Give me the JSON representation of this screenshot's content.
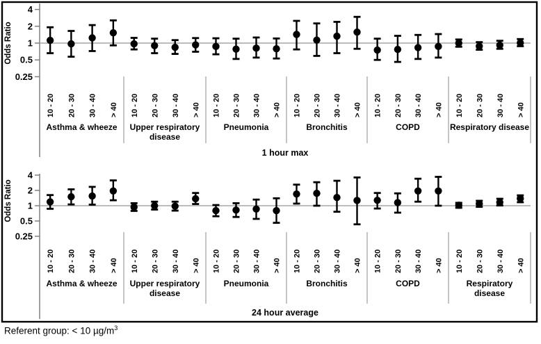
{
  "figure": {
    "referent_note": "Referent group: < 10 µg/m³",
    "referent_note_main": "Referent group: < 10 µg/m",
    "referent_note_sup": "3"
  },
  "colors": {
    "marker": "#000000",
    "axis": "#808080",
    "grid": "#a6a6a6",
    "separator": "#a6a6a6",
    "border": "#000000",
    "background": "#ffffff"
  },
  "chart_data": [
    {
      "type": "scatter",
      "subtype": "odds-ratio-forest-errorbar",
      "title": "1 hour max",
      "ylabel": "Odds Ratio",
      "yscale": "log2",
      "ylim": [
        0.25,
        4
      ],
      "yticks": [
        "4",
        "2",
        "1",
        "0.5",
        "0.25"
      ],
      "reference_line": 1,
      "x_categories": [
        "10 - 20",
        "20 - 30",
        "30 - 40",
        "> 40"
      ],
      "points_format": [
        "odds_ratio",
        "ci_low",
        "ci_high"
      ],
      "groups": [
        {
          "label": "Asthma & wheeze",
          "label_lines": [
            "Asthma & wheeze"
          ],
          "points": [
            [
              1.12,
              0.66,
              1.92
            ],
            [
              0.97,
              0.57,
              1.65
            ],
            [
              1.24,
              0.72,
              2.1
            ],
            [
              1.53,
              0.91,
              2.55
            ]
          ]
        },
        {
          "label": "Upper respiratory disease",
          "label_lines": [
            "Upper respiratory",
            "disease"
          ],
          "points": [
            [
              0.97,
              0.77,
              1.24
            ],
            [
              0.9,
              0.66,
              1.2
            ],
            [
              0.84,
              0.64,
              1.13
            ],
            [
              0.93,
              0.7,
              1.23
            ]
          ]
        },
        {
          "label": "Pneumonia",
          "label_lines": [
            "Pneumonia"
          ],
          "points": [
            [
              0.87,
              0.63,
              1.22
            ],
            [
              0.78,
              0.52,
              1.2
            ],
            [
              0.81,
              0.55,
              1.26
            ],
            [
              0.79,
              0.53,
              1.21
            ]
          ]
        },
        {
          "label": "Bronchitis",
          "label_lines": [
            "Bronchitis"
          ],
          "points": [
            [
              1.43,
              0.77,
              2.5
            ],
            [
              1.13,
              0.59,
              2.25
            ],
            [
              1.33,
              0.66,
              2.4
            ],
            [
              1.57,
              0.79,
              2.95
            ]
          ]
        },
        {
          "label": "COPD",
          "label_lines": [
            "COPD"
          ],
          "points": [
            [
              0.75,
              0.5,
              1.2
            ],
            [
              0.77,
              0.46,
              1.35
            ],
            [
              0.83,
              0.52,
              1.4
            ],
            [
              0.87,
              0.55,
              1.45
            ]
          ]
        },
        {
          "label": "Respiratory disease",
          "label_lines": [
            "Respiratory disease"
          ],
          "points": [
            [
              1.0,
              0.86,
              1.16
            ],
            [
              0.88,
              0.76,
              1.04
            ],
            [
              0.92,
              0.79,
              1.1
            ],
            [
              1.01,
              0.88,
              1.18
            ]
          ]
        }
      ]
    },
    {
      "type": "scatter",
      "subtype": "odds-ratio-forest-errorbar",
      "title": "24 hour average",
      "ylabel": "Odds Ratio",
      "yscale": "log2",
      "ylim": [
        0.25,
        4
      ],
      "yticks": [
        "4",
        "2",
        "1",
        "0.5",
        "0.25"
      ],
      "reference_line": 1,
      "x_categories": [
        "10 - 20",
        "20 - 30",
        "30 - 40",
        "> 40"
      ],
      "points_format": [
        "odds_ratio",
        "ci_low",
        "ci_high"
      ],
      "groups": [
        {
          "label": "Asthma & wheeze",
          "label_lines": [
            "Asthma & wheeze"
          ],
          "points": [
            [
              1.19,
              0.87,
              1.62
            ],
            [
              1.5,
              1.06,
              2.1
            ],
            [
              1.55,
              1.05,
              2.35
            ],
            [
              1.95,
              1.28,
              3.15
            ]
          ]
        },
        {
          "label": "Upper respiratory disease",
          "label_lines": [
            "Upper respiratory",
            "disease"
          ],
          "points": [
            [
              0.94,
              0.79,
              1.12
            ],
            [
              1.0,
              0.84,
              1.2
            ],
            [
              0.98,
              0.8,
              1.2
            ],
            [
              1.37,
              1.08,
              1.78
            ]
          ]
        },
        {
          "label": "Pneumonia",
          "label_lines": [
            "Pneumonia"
          ],
          "points": [
            [
              0.8,
              0.62,
              1.03
            ],
            [
              0.82,
              0.6,
              1.12
            ],
            [
              0.86,
              0.55,
              1.32
            ],
            [
              0.8,
              0.46,
              1.4
            ]
          ]
        },
        {
          "label": "Bronchitis",
          "label_lines": [
            "Bronchitis"
          ],
          "points": [
            [
              1.7,
              1.1,
              2.6
            ],
            [
              1.75,
              1.0,
              2.9
            ],
            [
              1.45,
              0.76,
              3.1
            ],
            [
              1.27,
              0.43,
              3.6
            ]
          ]
        },
        {
          "label": "COPD",
          "label_lines": [
            "COPD"
          ],
          "points": [
            [
              1.28,
              0.88,
              1.78
            ],
            [
              1.15,
              0.73,
              1.75
            ],
            [
              1.95,
              1.2,
              3.4
            ],
            [
              1.95,
              1.0,
              3.7
            ]
          ]
        },
        {
          "label": "Respiratory disease",
          "label_lines": [
            "Respiratory",
            "disease"
          ],
          "points": [
            [
              1.02,
              0.91,
              1.14
            ],
            [
              1.09,
              0.95,
              1.25
            ],
            [
              1.16,
              1.01,
              1.37
            ],
            [
              1.38,
              1.17,
              1.6
            ]
          ]
        }
      ]
    }
  ]
}
